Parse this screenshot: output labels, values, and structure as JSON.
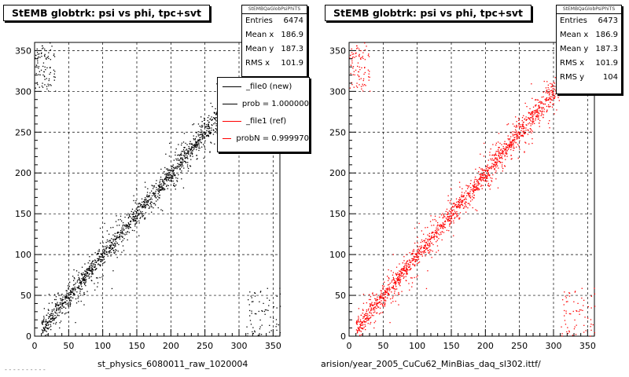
{
  "chart_data": [
    {
      "type": "scatter",
      "title": "StEMB globtrk: psi vs phi, tpc+svt",
      "xlabel": "st_physics_6080011_raw_1020004",
      "ylabel": "",
      "xlim": [
        0,
        360
      ],
      "ylim": [
        0,
        360
      ],
      "x_ticks": [
        0,
        50,
        100,
        150,
        200,
        250,
        300,
        350
      ],
      "y_ticks": [
        0,
        50,
        100,
        150,
        200,
        250,
        300,
        350
      ],
      "grid": true,
      "color": "#000000",
      "stats": {
        "header": "StEMBQaGlobPsiPhiTS",
        "rows": [
          {
            "label": "Entries",
            "value": "6474"
          },
          {
            "label": "Mean x",
            "value": "186.9"
          },
          {
            "label": "Mean y",
            "value": "187.3"
          },
          {
            "label": "RMS x",
            "value": "101.9"
          }
        ]
      },
      "legend": {
        "position": "top-right",
        "entries": [
          {
            "label": "_file0 (new)",
            "color": "#000000"
          },
          {
            "label": "prob = 1.000000",
            "color": "#000000"
          },
          {
            "label": "_file1 (ref)",
            "color": "#ff0000"
          },
          {
            "label": "probN = 0.999970",
            "color": "#ff0000"
          }
        ]
      }
    },
    {
      "type": "scatter",
      "title": "StEMB globtrk: psi vs phi, tpc+svt",
      "xlabel": "arision/year_2005_CuCu62_MinBias_daq_sl302.ittf/",
      "ylabel": "",
      "xlim": [
        0,
        360
      ],
      "ylim": [
        0,
        360
      ],
      "x_ticks": [
        0,
        50,
        100,
        150,
        200,
        250,
        300,
        350
      ],
      "y_ticks": [
        0,
        50,
        100,
        150,
        200,
        250,
        300,
        350
      ],
      "grid": true,
      "color": "#ff0000",
      "stats": {
        "header": "StEMBQaGlobPsiPhiTS",
        "rows": [
          {
            "label": "Entries",
            "value": "6473"
          },
          {
            "label": "Mean x",
            "value": "186.9"
          },
          {
            "label": "Mean y",
            "value": "187.3"
          },
          {
            "label": "RMS x",
            "value": "101.9"
          },
          {
            "label": "RMS y",
            "value": "104"
          }
        ]
      }
    }
  ],
  "footer": "- - - - - - - - - -"
}
